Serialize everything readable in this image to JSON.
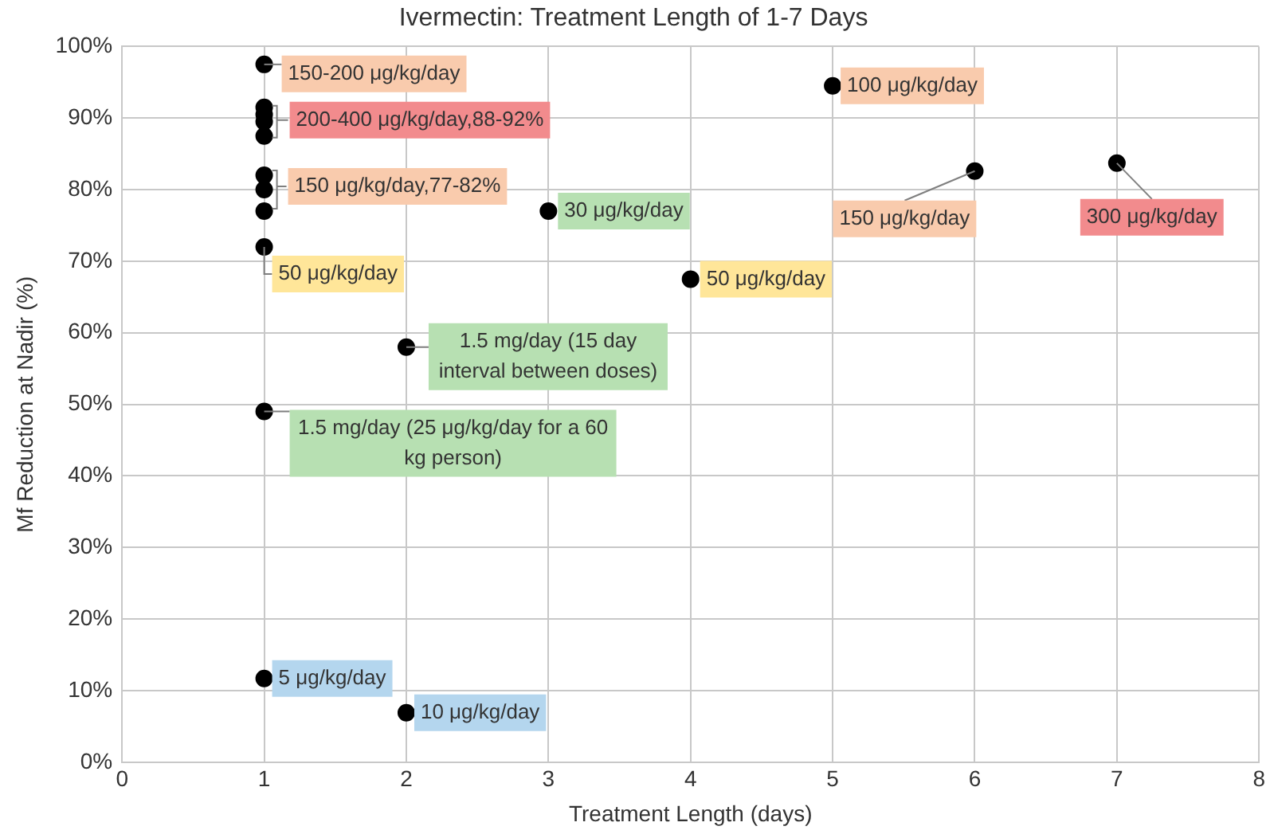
{
  "chart_data": {
    "type": "scatter",
    "title": "Ivermectin: Treatment Length of 1-7 Days",
    "xlabel": "Treatment Length (days)",
    "ylabel": "Mf Reduction at Nadir (%)",
    "x": [
      1,
      1,
      1,
      1,
      1,
      1,
      1,
      1,
      1,
      1,
      1,
      2,
      2,
      3,
      4,
      5,
      6,
      7
    ],
    "series": [
      {
        "color": "#000000",
        "values": [
          97.5,
          91.5,
          90.5,
          89.5,
          87.5,
          82,
          80,
          77,
          72,
          49,
          11.7,
          58,
          6.9,
          77,
          67.5,
          94.5,
          82.6,
          83.7
        ]
      }
    ],
    "xlim": [
      0,
      8
    ],
    "xticks": [
      0,
      1,
      2,
      3,
      4,
      5,
      6,
      7,
      8
    ],
    "ylim": [
      0,
      100
    ],
    "yticks": [
      {
        "value": 0,
        "label": "0%"
      },
      {
        "value": 10,
        "label": "10%"
      },
      {
        "value": 20,
        "label": "20%"
      },
      {
        "value": 30,
        "label": "30%"
      },
      {
        "value": 40,
        "label": "40%"
      },
      {
        "value": 50,
        "label": "50%"
      },
      {
        "value": 60,
        "label": "60%"
      },
      {
        "value": 70,
        "label": "70%"
      },
      {
        "value": 80,
        "label": "80%"
      },
      {
        "value": 90,
        "label": "90%"
      },
      {
        "value": 100,
        "label": "100%"
      }
    ],
    "grid": true,
    "legend": false,
    "marker": "circle",
    "annotations": [
      {
        "text": "150-200 μg/kg/day",
        "x": 1,
        "y": 97.5
      },
      {
        "text": "200-400 μg/kg/day,88-92%",
        "x": 1,
        "y": 89.5
      },
      {
        "text": "150 μg/kg/day,77-82%",
        "x": 1,
        "y": 80
      },
      {
        "text": "50 μg/kg/day",
        "x": 1,
        "y": 72
      },
      {
        "text": "1.5 mg/day (25 μg/kg/day for a 60 kg person)",
        "x": 1,
        "y": 49
      },
      {
        "text": "5 μg/kg/day",
        "x": 1,
        "y": 11.7
      },
      {
        "text": "1.5 mg/day (15 day interval between doses)",
        "x": 2,
        "y": 58
      },
      {
        "text": "10 μg/kg/day",
        "x": 2,
        "y": 6.9
      },
      {
        "text": "30 μg/kg/day",
        "x": 3,
        "y": 77
      },
      {
        "text": "50 μg/kg/day",
        "x": 4,
        "y": 67.5
      },
      {
        "text": "100 μg/kg/day",
        "x": 5,
        "y": 94.5
      },
      {
        "text": "150 μg/kg/day",
        "x": 6,
        "y": 82.6
      },
      {
        "text": "300 μg/kg/day",
        "x": 7,
        "y": 83.7
      }
    ]
  }
}
